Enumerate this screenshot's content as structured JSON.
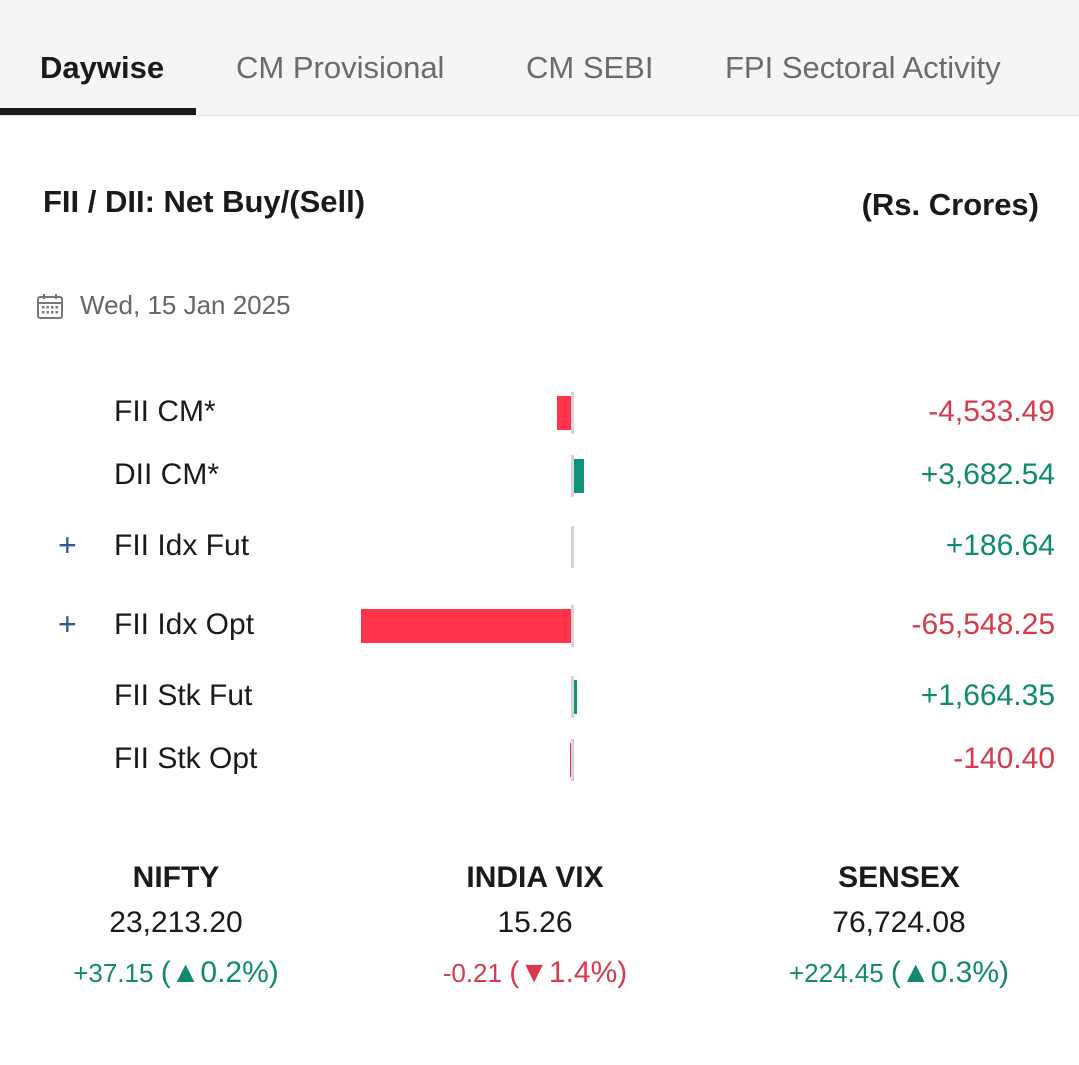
{
  "tabs": [
    {
      "label": "Daywise",
      "active": true
    },
    {
      "label": "CM Provisional",
      "active": false
    },
    {
      "label": "CM SEBI",
      "active": false
    },
    {
      "label": "FPI Sectoral Activity",
      "active": false
    }
  ],
  "header": {
    "title": "FII / DII: Net Buy/(Sell)",
    "units": "(Rs. Crores)"
  },
  "date": {
    "icon": "calendar-icon",
    "text": "Wed, 15 Jan 2025"
  },
  "colors": {
    "negative": "#ff3349",
    "positive": "#0e9478",
    "negative_text": "#d63a4c",
    "positive_text": "#0f8a6f"
  },
  "rows": [
    {
      "label": "FII CM*",
      "value": -4533.49,
      "display": "-4,533.49",
      "expandable": false
    },
    {
      "label": "DII CM*",
      "value": 3682.54,
      "display": "+3,682.54",
      "expandable": false
    },
    {
      "label": "FII Idx Fut",
      "value": 186.64,
      "display": "+186.64",
      "expandable": true
    },
    {
      "label": "FII Idx Opt",
      "value": -65548.25,
      "display": "-65,548.25",
      "expandable": true
    },
    {
      "label": "FII Stk Fut",
      "value": 1664.35,
      "display": "+1,664.35",
      "expandable": false
    },
    {
      "label": "FII Stk Opt",
      "value": -140.4,
      "display": "-140.40",
      "expandable": false
    }
  ],
  "indices": [
    {
      "name": "NIFTY",
      "value": "23,213.20",
      "change": "+37.15",
      "pct": "0.2%",
      "direction": "up"
    },
    {
      "name": "INDIA VIX",
      "value": "15.26",
      "change": "-0.21",
      "pct": "1.4%",
      "direction": "down"
    },
    {
      "name": "SENSEX",
      "value": "76,724.08",
      "change": "+224.45",
      "pct": "0.3%",
      "direction": "up"
    }
  ]
}
